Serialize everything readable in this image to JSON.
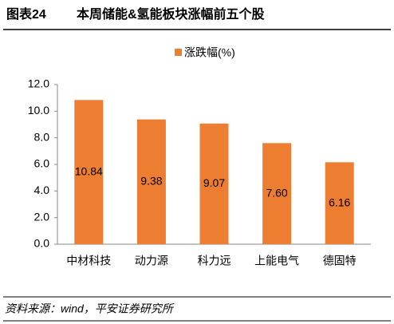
{
  "chart_data": {
    "type": "bar",
    "figure_label": "图表24",
    "title": "本周储能&氢能板块涨幅前五个股",
    "source": "资料来源：wind，平安证券研究所",
    "categories": [
      "中材科技",
      "动力源",
      "科力远",
      "上能电气",
      "德固特"
    ],
    "series": [
      {
        "name": "涨跌幅(%)",
        "color": "#ED7D31",
        "values": [
          10.84,
          9.38,
          9.07,
          7.6,
          6.16
        ],
        "value_labels": [
          "10.84",
          "9.38",
          "9.07",
          "7.60",
          "6.16"
        ]
      }
    ],
    "ylim": [
      0,
      12
    ],
    "yticks": [
      {
        "value": 0,
        "label": "0.0"
      },
      {
        "value": 2,
        "label": "2.0"
      },
      {
        "value": 4,
        "label": "4.0"
      },
      {
        "value": 6,
        "label": "6.0"
      },
      {
        "value": 8,
        "label": "8.0"
      },
      {
        "value": 10,
        "label": "10.0"
      },
      {
        "value": 12,
        "label": "12.0"
      }
    ],
    "grid": false,
    "legend": "top"
  }
}
